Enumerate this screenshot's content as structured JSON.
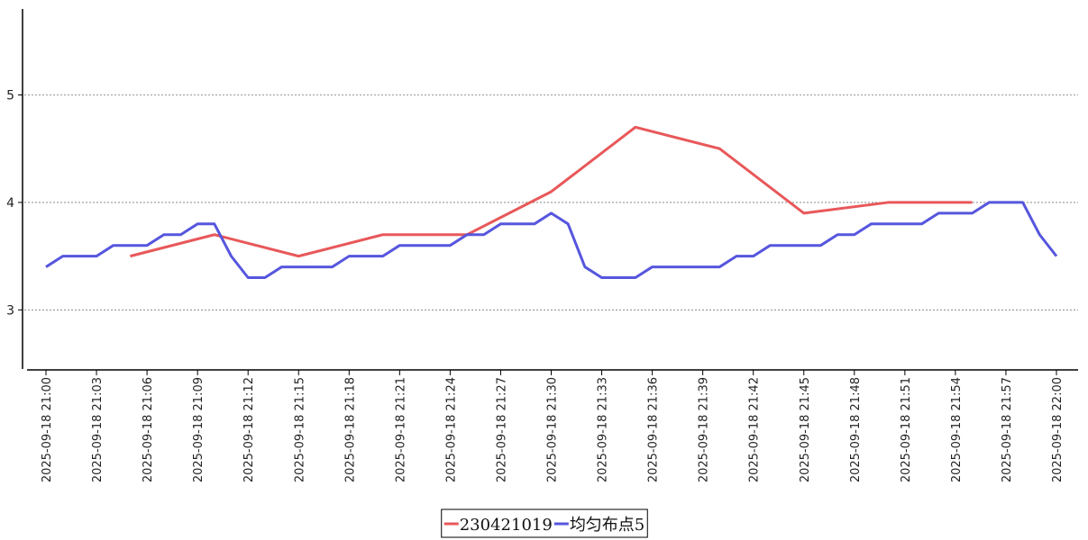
{
  "chart_data": {
    "type": "line",
    "x": [
      "2025-09-18 21:00",
      "2025-09-18 21:01",
      "2025-09-18 21:02",
      "2025-09-18 21:03",
      "2025-09-18 21:04",
      "2025-09-18 21:05",
      "2025-09-18 21:06",
      "2025-09-18 21:07",
      "2025-09-18 21:08",
      "2025-09-18 21:09",
      "2025-09-18 21:10",
      "2025-09-18 21:11",
      "2025-09-18 21:12",
      "2025-09-18 21:13",
      "2025-09-18 21:14",
      "2025-09-18 21:15",
      "2025-09-18 21:16",
      "2025-09-18 21:17",
      "2025-09-18 21:18",
      "2025-09-18 21:19",
      "2025-09-18 21:20",
      "2025-09-18 21:21",
      "2025-09-18 21:22",
      "2025-09-18 21:23",
      "2025-09-18 21:24",
      "2025-09-18 21:25",
      "2025-09-18 21:26",
      "2025-09-18 21:27",
      "2025-09-18 21:28",
      "2025-09-18 21:29",
      "2025-09-18 21:30",
      "2025-09-18 21:31",
      "2025-09-18 21:32",
      "2025-09-18 21:33",
      "2025-09-18 21:34",
      "2025-09-18 21:35",
      "2025-09-18 21:36",
      "2025-09-18 21:37",
      "2025-09-18 21:38",
      "2025-09-18 21:39",
      "2025-09-18 21:40",
      "2025-09-18 21:41",
      "2025-09-18 21:42",
      "2025-09-18 21:43",
      "2025-09-18 21:44",
      "2025-09-18 21:45",
      "2025-09-18 21:46",
      "2025-09-18 21:47",
      "2025-09-18 21:48",
      "2025-09-18 21:49",
      "2025-09-18 21:50",
      "2025-09-18 21:51",
      "2025-09-18 21:52",
      "2025-09-18 21:53",
      "2025-09-18 21:54",
      "2025-09-18 21:55",
      "2025-09-18 21:56",
      "2025-09-18 21:57",
      "2025-09-18 21:58",
      "2025-09-18 21:59",
      "2025-09-18 22:00"
    ],
    "xticks": [
      "2025-09-18 21:00",
      "2025-09-18 21:03",
      "2025-09-18 21:06",
      "2025-09-18 21:09",
      "2025-09-18 21:12",
      "2025-09-18 21:15",
      "2025-09-18 21:18",
      "2025-09-18 21:21",
      "2025-09-18 21:24",
      "2025-09-18 21:27",
      "2025-09-18 21:30",
      "2025-09-18 21:33",
      "2025-09-18 21:36",
      "2025-09-18 21:39",
      "2025-09-18 21:42",
      "2025-09-18 21:45",
      "2025-09-18 21:48",
      "2025-09-18 21:51",
      "2025-09-18 21:54",
      "2025-09-18 21:57",
      "2025-09-18 22:00"
    ],
    "yticks": [
      3,
      4,
      5
    ],
    "ylim": [
      2.45,
      5.8
    ],
    "grid": "horizontal-dotted",
    "legend": "bottom-center",
    "series": [
      {
        "name": "230421019",
        "color": "#e8585a",
        "points": [
          [
            "2025-09-18 21:05",
            3.5
          ],
          [
            "2025-09-18 21:10",
            3.7
          ],
          [
            "2025-09-18 21:15",
            3.5
          ],
          [
            "2025-09-18 21:20",
            3.7
          ],
          [
            "2025-09-18 21:25",
            3.7
          ],
          [
            "2025-09-18 21:30",
            4.1
          ],
          [
            "2025-09-18 21:35",
            4.7
          ],
          [
            "2025-09-18 21:40",
            4.5
          ],
          [
            "2025-09-18 21:45",
            3.9
          ],
          [
            "2025-09-18 21:50",
            4.0
          ],
          [
            "2025-09-18 21:55",
            4.0
          ]
        ]
      },
      {
        "name": "均匀布点5",
        "color": "#5656de",
        "points": [
          [
            "2025-09-18 21:00",
            3.4
          ],
          [
            "2025-09-18 21:01",
            3.5
          ],
          [
            "2025-09-18 21:02",
            3.5
          ],
          [
            "2025-09-18 21:03",
            3.5
          ],
          [
            "2025-09-18 21:04",
            3.6
          ],
          [
            "2025-09-18 21:05",
            3.6
          ],
          [
            "2025-09-18 21:06",
            3.6
          ],
          [
            "2025-09-18 21:07",
            3.7
          ],
          [
            "2025-09-18 21:08",
            3.7
          ],
          [
            "2025-09-18 21:09",
            3.8
          ],
          [
            "2025-09-18 21:10",
            3.8
          ],
          [
            "2025-09-18 21:11",
            3.5
          ],
          [
            "2025-09-18 21:12",
            3.3
          ],
          [
            "2025-09-18 21:13",
            3.3
          ],
          [
            "2025-09-18 21:14",
            3.4
          ],
          [
            "2025-09-18 21:15",
            3.4
          ],
          [
            "2025-09-18 21:16",
            3.4
          ],
          [
            "2025-09-18 21:17",
            3.4
          ],
          [
            "2025-09-18 21:18",
            3.5
          ],
          [
            "2025-09-18 21:19",
            3.5
          ],
          [
            "2025-09-18 21:20",
            3.5
          ],
          [
            "2025-09-18 21:21",
            3.6
          ],
          [
            "2025-09-18 21:22",
            3.6
          ],
          [
            "2025-09-18 21:23",
            3.6
          ],
          [
            "2025-09-18 21:24",
            3.6
          ],
          [
            "2025-09-18 21:25",
            3.7
          ],
          [
            "2025-09-18 21:26",
            3.7
          ],
          [
            "2025-09-18 21:27",
            3.8
          ],
          [
            "2025-09-18 21:28",
            3.8
          ],
          [
            "2025-09-18 21:29",
            3.8
          ],
          [
            "2025-09-18 21:30",
            3.9
          ],
          [
            "2025-09-18 21:31",
            3.8
          ],
          [
            "2025-09-18 21:32",
            3.4
          ],
          [
            "2025-09-18 21:33",
            3.3
          ],
          [
            "2025-09-18 21:34",
            3.3
          ],
          [
            "2025-09-18 21:35",
            3.3
          ],
          [
            "2025-09-18 21:36",
            3.4
          ],
          [
            "2025-09-18 21:37",
            3.4
          ],
          [
            "2025-09-18 21:38",
            3.4
          ],
          [
            "2025-09-18 21:39",
            3.4
          ],
          [
            "2025-09-18 21:40",
            3.4
          ],
          [
            "2025-09-18 21:41",
            3.5
          ],
          [
            "2025-09-18 21:42",
            3.5
          ],
          [
            "2025-09-18 21:43",
            3.6
          ],
          [
            "2025-09-18 21:44",
            3.6
          ],
          [
            "2025-09-18 21:45",
            3.6
          ],
          [
            "2025-09-18 21:46",
            3.6
          ],
          [
            "2025-09-18 21:47",
            3.7
          ],
          [
            "2025-09-18 21:48",
            3.7
          ],
          [
            "2025-09-18 21:49",
            3.8
          ],
          [
            "2025-09-18 21:50",
            3.8
          ],
          [
            "2025-09-18 21:51",
            3.8
          ],
          [
            "2025-09-18 21:52",
            3.8
          ],
          [
            "2025-09-18 21:53",
            3.9
          ],
          [
            "2025-09-18 21:54",
            3.9
          ],
          [
            "2025-09-18 21:55",
            3.9
          ],
          [
            "2025-09-18 21:56",
            4.0
          ],
          [
            "2025-09-18 21:57",
            4.0
          ],
          [
            "2025-09-18 21:58",
            4.0
          ],
          [
            "2025-09-18 21:59",
            3.7
          ],
          [
            "2025-09-18 22:00",
            3.5
          ]
        ]
      }
    ]
  }
}
